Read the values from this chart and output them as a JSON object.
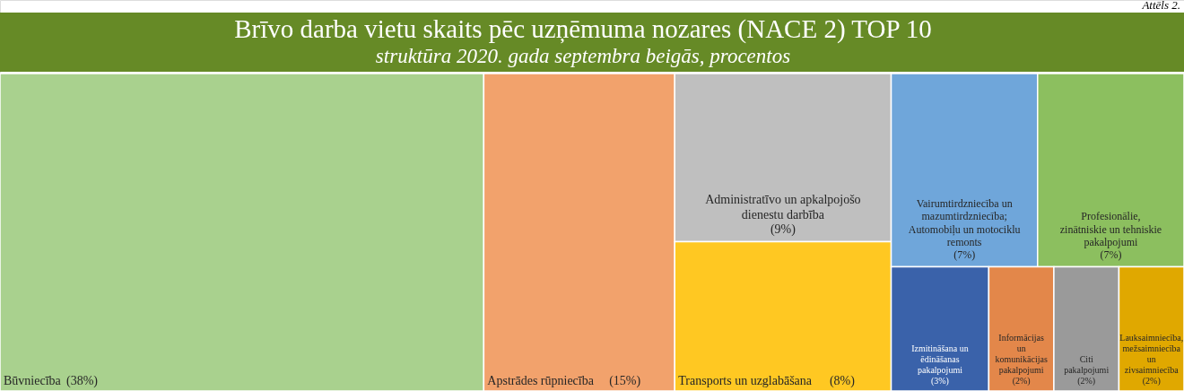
{
  "chart_data": {
    "type": "other",
    "title": "Brīvo darba vietu skaits pēc uzņēmuma nozares (NACE 2) TOP 10",
    "subtitle": "struktūra 2020. gada septembra beigās, procentos",
    "annotations": [
      "Attēls 2."
    ],
    "categories": [
      "Būvniecība",
      "Apstrādes rūpniecība",
      "Administratīvo un apkalpojošo dienestu darbība",
      "Transports un uzglabāšana",
      "Vairumtirdzniecība un mazumtirdzniecība; Automobiļu un motociklu remonts",
      "Profesionālie, zinātniskie un tehniskie pakalpojumi",
      "Izmitināšana un ēdināšanas pakalpojumi",
      "Informācijas un komunikācijas pakalpojumi",
      "Citi pakalpojumi",
      "Lauksaimniecība, mežsaimniecība un zivsaimniecība"
    ],
    "values": [
      38,
      15,
      9,
      8,
      7,
      7,
      3,
      2,
      2,
      2
    ],
    "value_labels": [
      "(38%)",
      "(15%)",
      "(9%)",
      "(8%)",
      "(7%)",
      "(7%)",
      "(3%)",
      "(2%)",
      "(2%)",
      "(2%)"
    ],
    "colors": [
      "#a9d18e",
      "#f2a26c",
      "#bfbfbf",
      "#ffc822",
      "#6fa6da",
      "#8cbf5f",
      "#3a62aa",
      "#e3874a",
      "#9a9a9a",
      "#e0a800"
    ]
  }
}
